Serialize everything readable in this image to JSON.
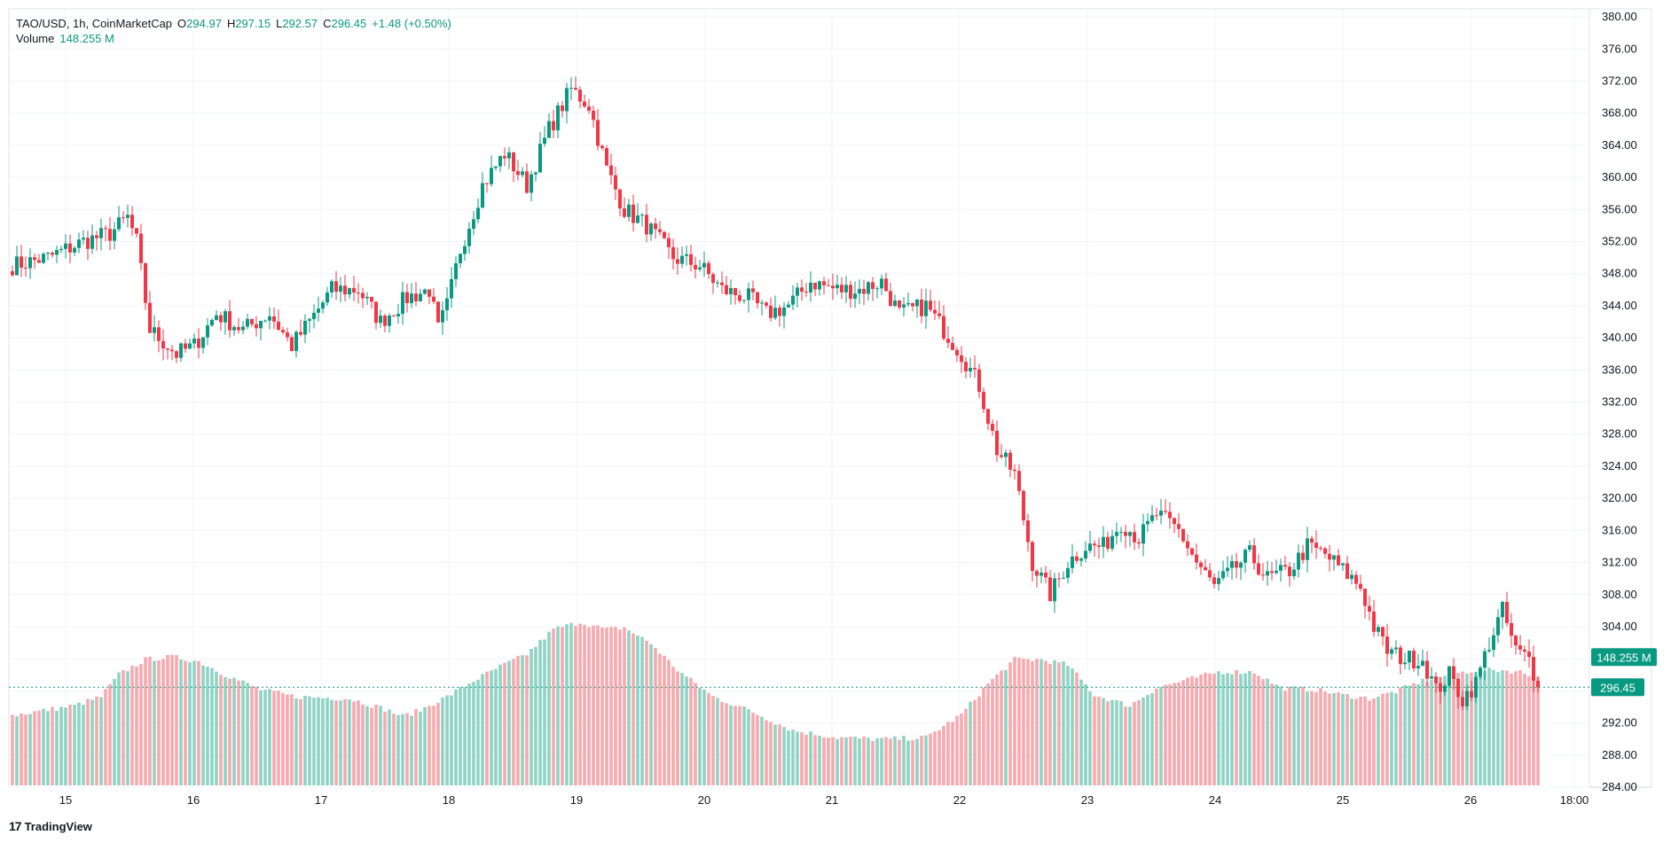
{
  "header": {
    "symbol": "TAO/USD, 1h, CoinMarketCap",
    "o_label": "O",
    "o_value": "294.97",
    "h_label": "H",
    "h_value": "297.15",
    "l_label": "L",
    "l_value": "292.57",
    "c_label": "C",
    "c_value": "296.45",
    "change": "+1.48 (+0.50%)",
    "volume_label": "Volume",
    "volume_value": "148.255 M"
  },
  "footer": {
    "brand": "TradingView",
    "brand_mark": "17"
  },
  "colors": {
    "up": "#089981",
    "down": "#f23645",
    "up_vol": "#8fd3c4",
    "down_vol": "#f7a9ae",
    "grid": "#f0f3fa",
    "axis_text": "#131722"
  },
  "chart_data": {
    "type": "candlestick",
    "symbol": "TAO/USD",
    "interval": "1h",
    "source": "CoinMarketCap",
    "y_ticks": [
      "380.00",
      "376.00",
      "372.00",
      "368.00",
      "364.00",
      "360.00",
      "356.00",
      "352.00",
      "348.00",
      "344.00",
      "340.00",
      "336.00",
      "332.00",
      "328.00",
      "324.00",
      "320.00",
      "316.00",
      "312.00",
      "308.00",
      "304.00",
      "300.00",
      "296.00",
      "292.00",
      "288.00",
      "284.00"
    ],
    "ylim": [
      284,
      381
    ],
    "x_ticks": [
      "15",
      "16",
      "17",
      "18",
      "19",
      "20",
      "21",
      "22",
      "23",
      "24",
      "25",
      "26",
      "18:00"
    ],
    "last_price": "296.45",
    "last_volume": "148.255 M",
    "grid": true,
    "anchors": [
      [
        0,
        349
      ],
      [
        8,
        350
      ],
      [
        16,
        352
      ],
      [
        22,
        353
      ],
      [
        26,
        355
      ],
      [
        28,
        352
      ],
      [
        31,
        341
      ],
      [
        37,
        338
      ],
      [
        41,
        339
      ],
      [
        46,
        343
      ],
      [
        52,
        341
      ],
      [
        58,
        343
      ],
      [
        63,
        339
      ],
      [
        67,
        342
      ],
      [
        72,
        346
      ],
      [
        78,
        346
      ],
      [
        83,
        342
      ],
      [
        89,
        345
      ],
      [
        94,
        346
      ],
      [
        96,
        341
      ],
      [
        98,
        344
      ],
      [
        101,
        351
      ],
      [
        106,
        359
      ],
      [
        111,
        363
      ],
      [
        116,
        359
      ],
      [
        121,
        366
      ],
      [
        126,
        371
      ],
      [
        130,
        369
      ],
      [
        134,
        361
      ],
      [
        138,
        356
      ],
      [
        143,
        354
      ],
      [
        149,
        350
      ],
      [
        155,
        349
      ],
      [
        160,
        346
      ],
      [
        166,
        345
      ],
      [
        170,
        343
      ],
      [
        175,
        344
      ],
      [
        180,
        347
      ],
      [
        186,
        346
      ],
      [
        191,
        346
      ],
      [
        196,
        347
      ],
      [
        200,
        343
      ],
      [
        206,
        344
      ],
      [
        210,
        341
      ],
      [
        214,
        338
      ],
      [
        218,
        334
      ],
      [
        222,
        326
      ],
      [
        226,
        323
      ],
      [
        230,
        312
      ],
      [
        234,
        308
      ],
      [
        238,
        312
      ],
      [
        242,
        314
      ],
      [
        246,
        314
      ],
      [
        250,
        317
      ],
      [
        254,
        315
      ],
      [
        258,
        318
      ],
      [
        263,
        316
      ],
      [
        267,
        312
      ],
      [
        271,
        309
      ],
      [
        275,
        311
      ],
      [
        279,
        313
      ],
      [
        283,
        310
      ],
      [
        288,
        311
      ],
      [
        292,
        314
      ],
      [
        296,
        313
      ],
      [
        300,
        311
      ],
      [
        304,
        309
      ],
      [
        307,
        304
      ],
      [
        310,
        301
      ],
      [
        314,
        300
      ],
      [
        318,
        300
      ],
      [
        321,
        296
      ],
      [
        324,
        298
      ],
      [
        327,
        295
      ],
      [
        330,
        297
      ],
      [
        333,
        302
      ],
      [
        336,
        306
      ],
      [
        339,
        301
      ],
      [
        342,
        300
      ],
      [
        344,
        296.45
      ]
    ],
    "volume_anchors": [
      [
        0,
        79
      ],
      [
        14,
        90
      ],
      [
        20,
        100
      ],
      [
        24,
        125
      ],
      [
        30,
        142
      ],
      [
        36,
        145
      ],
      [
        42,
        140
      ],
      [
        48,
        125
      ],
      [
        56,
        108
      ],
      [
        64,
        100
      ],
      [
        76,
        98
      ],
      [
        84,
        86
      ],
      [
        88,
        78
      ],
      [
        92,
        85
      ],
      [
        98,
        100
      ],
      [
        104,
        118
      ],
      [
        110,
        134
      ],
      [
        116,
        148
      ],
      [
        122,
        176
      ],
      [
        128,
        184
      ],
      [
        134,
        176
      ],
      [
        138,
        178
      ],
      [
        144,
        160
      ],
      [
        150,
        130
      ],
      [
        158,
        100
      ],
      [
        166,
        85
      ],
      [
        176,
        62
      ],
      [
        186,
        54
      ],
      [
        196,
        52
      ],
      [
        206,
        54
      ],
      [
        214,
        80
      ],
      [
        220,
        115
      ],
      [
        226,
        142
      ],
      [
        232,
        142
      ],
      [
        238,
        136
      ],
      [
        244,
        102
      ],
      [
        252,
        90
      ],
      [
        258,
        110
      ],
      [
        264,
        118
      ],
      [
        272,
        128
      ],
      [
        280,
        128
      ],
      [
        286,
        110
      ],
      [
        294,
        108
      ],
      [
        300,
        102
      ],
      [
        306,
        98
      ],
      [
        312,
        106
      ],
      [
        318,
        118
      ],
      [
        324,
        125
      ],
      [
        330,
        130
      ],
      [
        336,
        130
      ],
      [
        340,
        128
      ],
      [
        344,
        122
      ]
    ]
  }
}
